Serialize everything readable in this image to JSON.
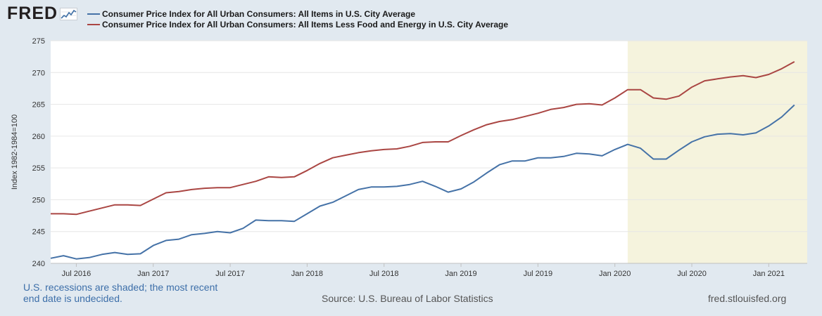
{
  "logo": {
    "text": "FRED",
    "icon": "fred-chart-logo-icon"
  },
  "chart_data": {
    "type": "line",
    "title": "",
    "xlabel": "",
    "ylabel": "Index 1982-1984=100",
    "ylim": [
      240,
      275
    ],
    "yticks": [
      240,
      245,
      250,
      255,
      260,
      265,
      270,
      275
    ],
    "xlim": [
      "2016-05",
      "2021-04"
    ],
    "xticks": [
      {
        "label": "Jul 2016",
        "date": "2016-07"
      },
      {
        "label": "Jan 2017",
        "date": "2017-01"
      },
      {
        "label": "Jul 2017",
        "date": "2017-07"
      },
      {
        "label": "Jan 2018",
        "date": "2018-01"
      },
      {
        "label": "Jul 2018",
        "date": "2018-07"
      },
      {
        "label": "Jan 2019",
        "date": "2019-01"
      },
      {
        "label": "Jul 2019",
        "date": "2019-07"
      },
      {
        "label": "Jan 2020",
        "date": "2020-01"
      },
      {
        "label": "Jul 2020",
        "date": "2020-07"
      },
      {
        "label": "Jan 2021",
        "date": "2021-01"
      }
    ],
    "grid": true,
    "recession": {
      "start": "2020-02",
      "end": "2021-04"
    },
    "x_start": "2016-05",
    "series": [
      {
        "name": "Consumer Price Index for All Urban Consumers: All Items in U.S. City Average",
        "color": "#4572a7",
        "values": [
          240.8,
          241.2,
          240.7,
          240.9,
          241.4,
          241.7,
          241.4,
          241.5,
          242.8,
          243.6,
          243.8,
          244.5,
          244.7,
          245.0,
          244.8,
          245.5,
          246.8,
          246.7,
          246.7,
          246.6,
          247.8,
          249.0,
          249.6,
          250.6,
          251.6,
          252.0,
          252.0,
          252.1,
          252.4,
          252.9,
          252.1,
          251.2,
          251.7,
          252.8,
          254.2,
          255.5,
          256.1,
          256.1,
          256.6,
          256.6,
          256.8,
          257.3,
          257.2,
          256.9,
          257.9,
          258.7,
          258.1,
          256.4,
          256.4,
          257.8,
          259.1,
          259.9,
          260.3,
          260.4,
          260.2,
          260.5,
          261.6,
          263.0,
          264.9
        ]
      },
      {
        "name": "Consumer Price Index for All Urban Consumers: All Items Less Food and Energy in U.S. City Average",
        "color": "#aa4643",
        "values": [
          247.8,
          247.8,
          247.7,
          248.2,
          248.7,
          249.2,
          249.2,
          249.1,
          250.1,
          251.1,
          251.3,
          251.6,
          251.8,
          251.9,
          251.9,
          252.4,
          252.9,
          253.6,
          253.5,
          253.6,
          254.6,
          255.7,
          256.6,
          257.0,
          257.4,
          257.7,
          257.9,
          258.0,
          258.4,
          259.0,
          259.1,
          259.1,
          260.1,
          261.0,
          261.8,
          262.3,
          262.6,
          263.1,
          263.6,
          264.2,
          264.5,
          265.0,
          265.1,
          264.9,
          266.0,
          267.3,
          267.3,
          266.0,
          265.8,
          266.3,
          267.7,
          268.7,
          269.0,
          269.3,
          269.5,
          269.2,
          269.7,
          270.6,
          271.7
        ]
      }
    ]
  },
  "footer": {
    "note": "U.S. recessions are shaded; the most recent end date is undecided.",
    "source": "Source: U.S. Bureau of Labor Statistics",
    "site": "fred.stlouisfed.org"
  }
}
